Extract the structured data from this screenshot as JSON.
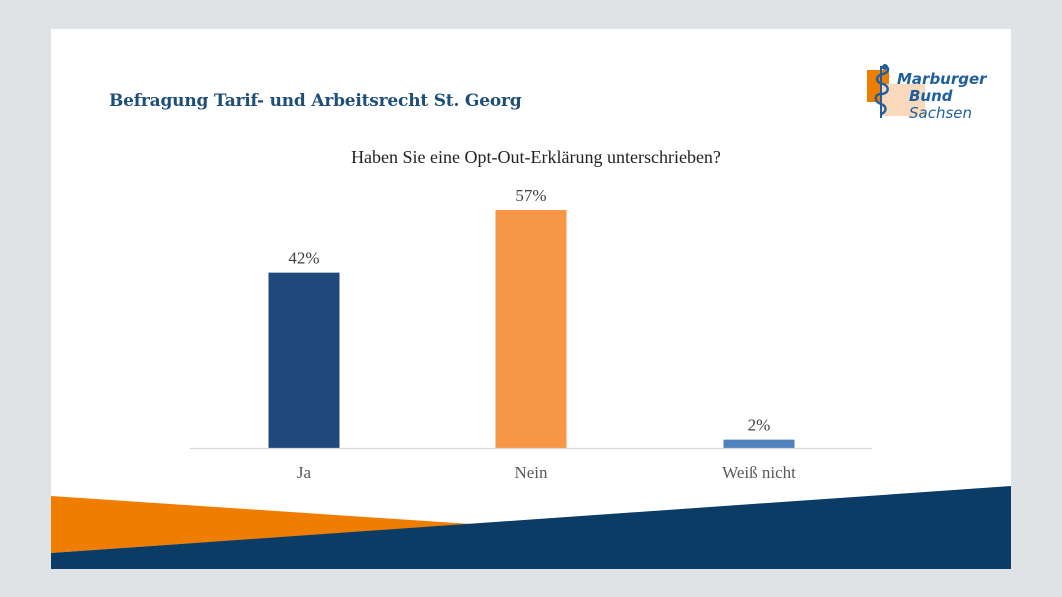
{
  "slide": {
    "title": "Befragung Tarif- und Arbeitsrecht St. Georg",
    "logo": {
      "line1": "Marburger",
      "line2": "Bund",
      "line3": "Sachsen",
      "icon": "rod-of-asclepius-icon",
      "colors": {
        "orange": "#ef7d00",
        "peach": "#fbd9bd",
        "blue": "#1f5fa0"
      }
    },
    "footer_colors": {
      "orange": "#ef7d00",
      "navy": "#0b3c66"
    }
  },
  "chart_data": {
    "type": "bar",
    "title": "Haben Sie eine Opt-Out-Erklärung unterschrieben?",
    "categories": [
      "Ja",
      "Nein",
      "Weiß nicht"
    ],
    "values": [
      42,
      57,
      2
    ],
    "data_labels": [
      "42%",
      "57%",
      "2%"
    ],
    "colors": [
      "#1f497d",
      "#f79646",
      "#4f81bd"
    ],
    "unit": "%",
    "xlabel": "",
    "ylabel": "",
    "ylim": [
      0,
      57
    ],
    "grid": false,
    "legend": "none"
  }
}
